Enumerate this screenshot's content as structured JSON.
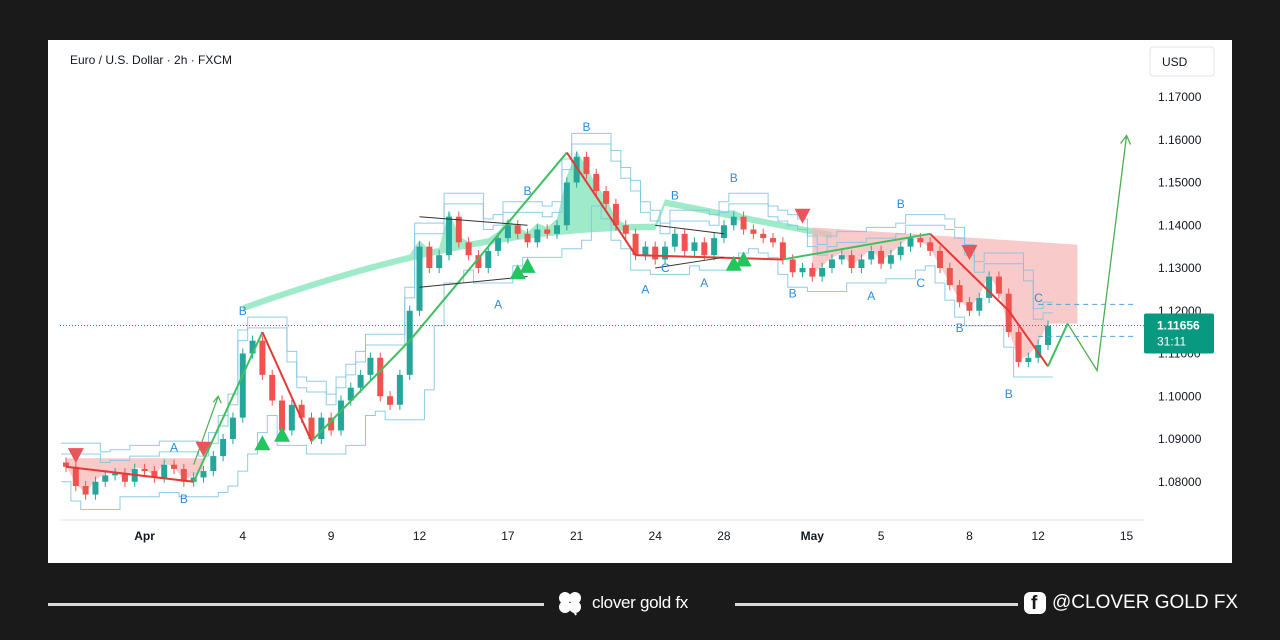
{
  "chart_title": "Euro / U.S. Dollar · 2h · FXCM",
  "currency_button": "USD",
  "price_tag": {
    "price": "1.11656",
    "countdown": "31:11"
  },
  "footer": {
    "brand": "clover gold fx",
    "social": "@CLOVER GOLD FX"
  },
  "colors": {
    "bull": "#26a69a",
    "bear": "#ef5350",
    "wave_label": "#2a8de0",
    "up_fill": "#7fe3b5",
    "down_fill": "#f7b3b3",
    "channel": "#7cc3e3",
    "price_tag": "#089981",
    "forecast": "#4caf50"
  },
  "chart_data": {
    "type": "candlestick",
    "y_ticks": [
      1.17,
      1.16,
      1.15,
      1.14,
      1.13,
      1.12,
      1.11,
      1.1,
      1.09,
      1.08
    ],
    "y_tick_labels": [
      "1.17000",
      "1.16000",
      "1.15000",
      "1.14000",
      "1.13000",
      "1.12000",
      "1.11000",
      "1.10000",
      "1.09000",
      "1.08000"
    ],
    "x_labels": [
      {
        "label": "Apr",
        "bold": true,
        "i": 8
      },
      {
        "label": "4",
        "bold": false,
        "i": 18
      },
      {
        "label": "9",
        "bold": false,
        "i": 27
      },
      {
        "label": "12",
        "bold": false,
        "i": 36
      },
      {
        "label": "17",
        "bold": false,
        "i": 45
      },
      {
        "label": "21",
        "bold": false,
        "i": 52
      },
      {
        "label": "24",
        "bold": false,
        "i": 60
      },
      {
        "label": "28",
        "bold": false,
        "i": 67
      },
      {
        "label": "May",
        "bold": true,
        "i": 76
      },
      {
        "label": "5",
        "bold": false,
        "i": 83
      },
      {
        "label": "8",
        "bold": false,
        "i": 92
      },
      {
        "label": "12",
        "bold": false,
        "i": 99
      },
      {
        "label": "15",
        "bold": false,
        "i": 108
      }
    ],
    "closes": [
      1.0835,
      1.079,
      1.077,
      1.08,
      1.0815,
      1.082,
      1.08,
      1.083,
      1.0825,
      1.081,
      1.084,
      1.083,
      1.08,
      1.081,
      1.0825,
      1.086,
      1.09,
      1.095,
      1.11,
      1.113,
      1.105,
      1.099,
      1.092,
      1.098,
      1.095,
      1.09,
      1.095,
      1.092,
      1.099,
      1.102,
      1.105,
      1.109,
      1.1,
      1.098,
      1.105,
      1.12,
      1.135,
      1.13,
      1.133,
      1.142,
      1.136,
      1.133,
      1.13,
      1.134,
      1.137,
      1.14,
      1.138,
      1.136,
      1.139,
      1.138,
      1.14,
      1.15,
      1.156,
      1.152,
      1.148,
      1.145,
      1.14,
      1.138,
      1.133,
      1.135,
      1.132,
      1.135,
      1.138,
      1.134,
      1.136,
      1.133,
      1.137,
      1.14,
      1.142,
      1.139,
      1.138,
      1.137,
      1.136,
      1.132,
      1.129,
      1.13,
      1.128,
      1.13,
      1.132,
      1.133,
      1.13,
      1.132,
      1.134,
      1.131,
      1.133,
      1.135,
      1.137,
      1.136,
      1.134,
      1.13,
      1.126,
      1.122,
      1.12,
      1.123,
      1.128,
      1.124,
      1.115,
      1.108,
      1.109,
      1.112,
      1.1165
    ],
    "low_point": 1.107,
    "current_price": 1.11656,
    "up_channel": {
      "start": 1.104,
      "peak": 1.145,
      "end": 1.116
    },
    "waves": [
      {
        "i": 0,
        "y": 1.0835
      },
      {
        "i": 13,
        "y": 1.08
      },
      {
        "i": 20,
        "y": 1.115
      },
      {
        "i": 25,
        "y": 1.0895
      },
      {
        "i": 35,
        "y": 1.113
      },
      {
        "i": 51,
        "y": 1.157
      },
      {
        "i": 58,
        "y": 1.133
      },
      {
        "i": 73,
        "y": 1.132
      },
      {
        "i": 88,
        "y": 1.138
      },
      {
        "i": 96,
        "y": 1.12
      },
      {
        "i": 100,
        "y": 1.107
      },
      {
        "i": 102,
        "y": 1.117
      }
    ],
    "forecast": [
      {
        "i": 102,
        "y": 1.117
      },
      {
        "i": 105,
        "y": 1.106
      },
      {
        "i": 108,
        "y": 1.161
      }
    ],
    "wave_labels": [
      {
        "text": "A",
        "i": 11,
        "y": 1.088
      },
      {
        "text": "B",
        "i": 18,
        "y": 1.12
      },
      {
        "text": "B",
        "i": 12,
        "y": 1.076
      },
      {
        "text": "B",
        "i": 47,
        "y": 1.148
      },
      {
        "text": "A",
        "i": 44,
        "y": 1.1215
      },
      {
        "text": "B",
        "i": 53,
        "y": 1.163
      },
      {
        "text": "B",
        "i": 62,
        "y": 1.147
      },
      {
        "text": "A",
        "i": 59,
        "y": 1.125
      },
      {
        "text": "C",
        "i": 61,
        "y": 1.13
      },
      {
        "text": "A",
        "i": 65,
        "y": 1.1265
      },
      {
        "text": "B",
        "i": 68,
        "y": 1.151
      },
      {
        "text": "B",
        "i": 74,
        "y": 1.124
      },
      {
        "text": "A",
        "i": 82,
        "y": 1.1235
      },
      {
        "text": "B",
        "i": 85,
        "y": 1.145
      },
      {
        "text": "C",
        "i": 87,
        "y": 1.1265
      },
      {
        "text": "B",
        "i": 91,
        "y": 1.116
      },
      {
        "text": "B",
        "i": 96,
        "y": 1.1005
      },
      {
        "text": "C",
        "i": 99,
        "y": 1.123
      }
    ],
    "sell_markers": [
      {
        "i": 1,
        "y": 1.086
      },
      {
        "i": 14,
        "y": 1.0875
      },
      {
        "i": 75,
        "y": 1.142
      },
      {
        "i": 92,
        "y": 1.1335
      }
    ],
    "buy_markers": [
      {
        "i": 20,
        "y": 1.089
      },
      {
        "i": 22,
        "y": 1.091
      },
      {
        "i": 46,
        "y": 1.129
      },
      {
        "i": 47,
        "y": 1.1305
      },
      {
        "i": 68,
        "y": 1.131
      },
      {
        "i": 69,
        "y": 1.132
      }
    ]
  }
}
